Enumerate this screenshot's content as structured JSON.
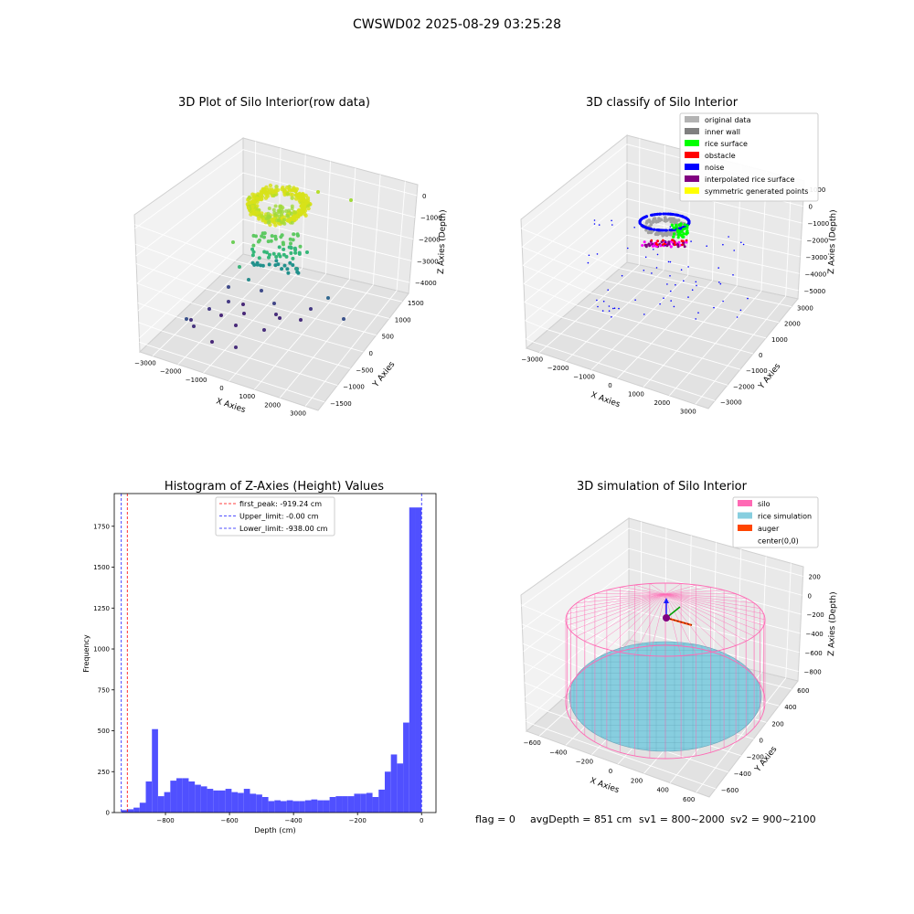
{
  "figure": {
    "suptitle": "CWSWD02 2025-08-29 03:25:28",
    "footer": {
      "flag": "flag = 0",
      "avg_depth": "avgDepth = 851 cm",
      "sv1": "sv1 = 800~2000",
      "sv2": "sv2 = 900~2100"
    }
  },
  "colors": {
    "hist_bar": "#5050ff",
    "first_peak_line": "#ff0000",
    "limit_line": "#1a1aff",
    "silo": "#ff69b4",
    "rice": "#87cedf",
    "auger": "#ff4500",
    "pane": "#f2f2f2",
    "grid": "#d9d9d9"
  },
  "chart_data": [
    {
      "type": "scatter",
      "projection": "3d",
      "title": "3D Plot of Silo Interior(row data)",
      "xlabel": "X Axies",
      "ylabel": "Y Axies",
      "zlabel": "Z Axies (Depth)",
      "x_ticks": [
        "−3000",
        "−2000",
        "−1000",
        "0",
        "1000",
        "2000",
        "3000"
      ],
      "y_ticks": [
        "−1500",
        "−1000",
        "−500",
        "0",
        "500",
        "1000",
        "1500"
      ],
      "z_ticks": [
        "−4000",
        "−3000",
        "−2000",
        "−1000",
        "0"
      ],
      "colormap": "viridis (by depth)",
      "grid": true
    },
    {
      "type": "scatter",
      "projection": "3d",
      "title": "3D classify of Silo Interior",
      "xlabel": "X Axies",
      "ylabel": "Y Axies",
      "zlabel": "Z Axies (Depth)",
      "x_ticks": [
        "−3000",
        "−2000",
        "−1000",
        "0",
        "1000",
        "2000",
        "3000"
      ],
      "y_ticks": [
        "−3000",
        "−2000",
        "−1000",
        "0",
        "1000",
        "2000",
        "3000"
      ],
      "z_ticks": [
        "−5000",
        "−4000",
        "−3000",
        "−2000",
        "−1000",
        "0",
        "1000"
      ],
      "legend_position": "top-right",
      "legend": [
        {
          "label": "original data",
          "color": "#b3b3b3"
        },
        {
          "label": "inner wall",
          "color": "#808080"
        },
        {
          "label": "rice surface",
          "color": "#00ff00"
        },
        {
          "label": "obstacle",
          "color": "#ff0000"
        },
        {
          "label": "noise",
          "color": "#0000ff"
        },
        {
          "label": "interpolated rice surface",
          "color": "#800080"
        },
        {
          "label": "symmetric generated points",
          "color": "#ffff00"
        }
      ],
      "grid": true
    },
    {
      "type": "bar",
      "title": "Histogram of Z-Axies (Height) Values",
      "xlabel": "Depth (cm)",
      "ylabel": "Frequency",
      "xlim": [
        -960,
        45
      ],
      "ylim": [
        0,
        1950
      ],
      "x_ticks": [
        "−800",
        "−600",
        "−400",
        "−200",
        "0"
      ],
      "y_ticks": [
        "0",
        "250",
        "500",
        "750",
        "1000",
        "1250",
        "1500",
        "1750"
      ],
      "bin_start": -938,
      "bin_width": 19.14,
      "values": [
        15,
        20,
        30,
        60,
        190,
        510,
        100,
        125,
        195,
        210,
        210,
        190,
        170,
        160,
        145,
        135,
        135,
        145,
        125,
        120,
        145,
        115,
        110,
        95,
        70,
        75,
        70,
        75,
        70,
        70,
        75,
        80,
        75,
        75,
        95,
        100,
        100,
        100,
        115,
        115,
        120,
        95,
        140,
        250,
        355,
        300,
        550,
        1865,
        1865
      ],
      "lines": [
        {
          "label": "first_peak: -919.24 cm",
          "x": -919.24,
          "style": "red-dashed"
        },
        {
          "label": "Upper_limit: -0.00 cm",
          "x": 0.0,
          "style": "blue-dashed"
        },
        {
          "label": "Lower_limit: -938.00 cm",
          "x": -938.0,
          "style": "blue-dashed"
        }
      ],
      "legend_position": "top-center"
    },
    {
      "type": "surface",
      "projection": "3d",
      "title": "3D simulation of Silo Interior",
      "xlabel": "X Axies",
      "ylabel": "Y Axies",
      "zlabel": "Z Axies (Depth)",
      "x_ticks": [
        "−600",
        "−400",
        "−200",
        "0",
        "200",
        "400",
        "600"
      ],
      "y_ticks": [
        "−600",
        "−400",
        "−200",
        "0",
        "200",
        "400",
        "600"
      ],
      "z_ticks": [
        "−800",
        "−600",
        "−400",
        "−200",
        "0",
        "200"
      ],
      "legend_position": "top-right",
      "legend": [
        {
          "label": "silo",
          "color": "#ff69b4"
        },
        {
          "label": "rice simulation",
          "color": "#87cedf"
        },
        {
          "label": "auger",
          "color": "#ff4500"
        },
        {
          "label": "center(0,0)",
          "color": ""
        }
      ],
      "grid": true
    }
  ]
}
